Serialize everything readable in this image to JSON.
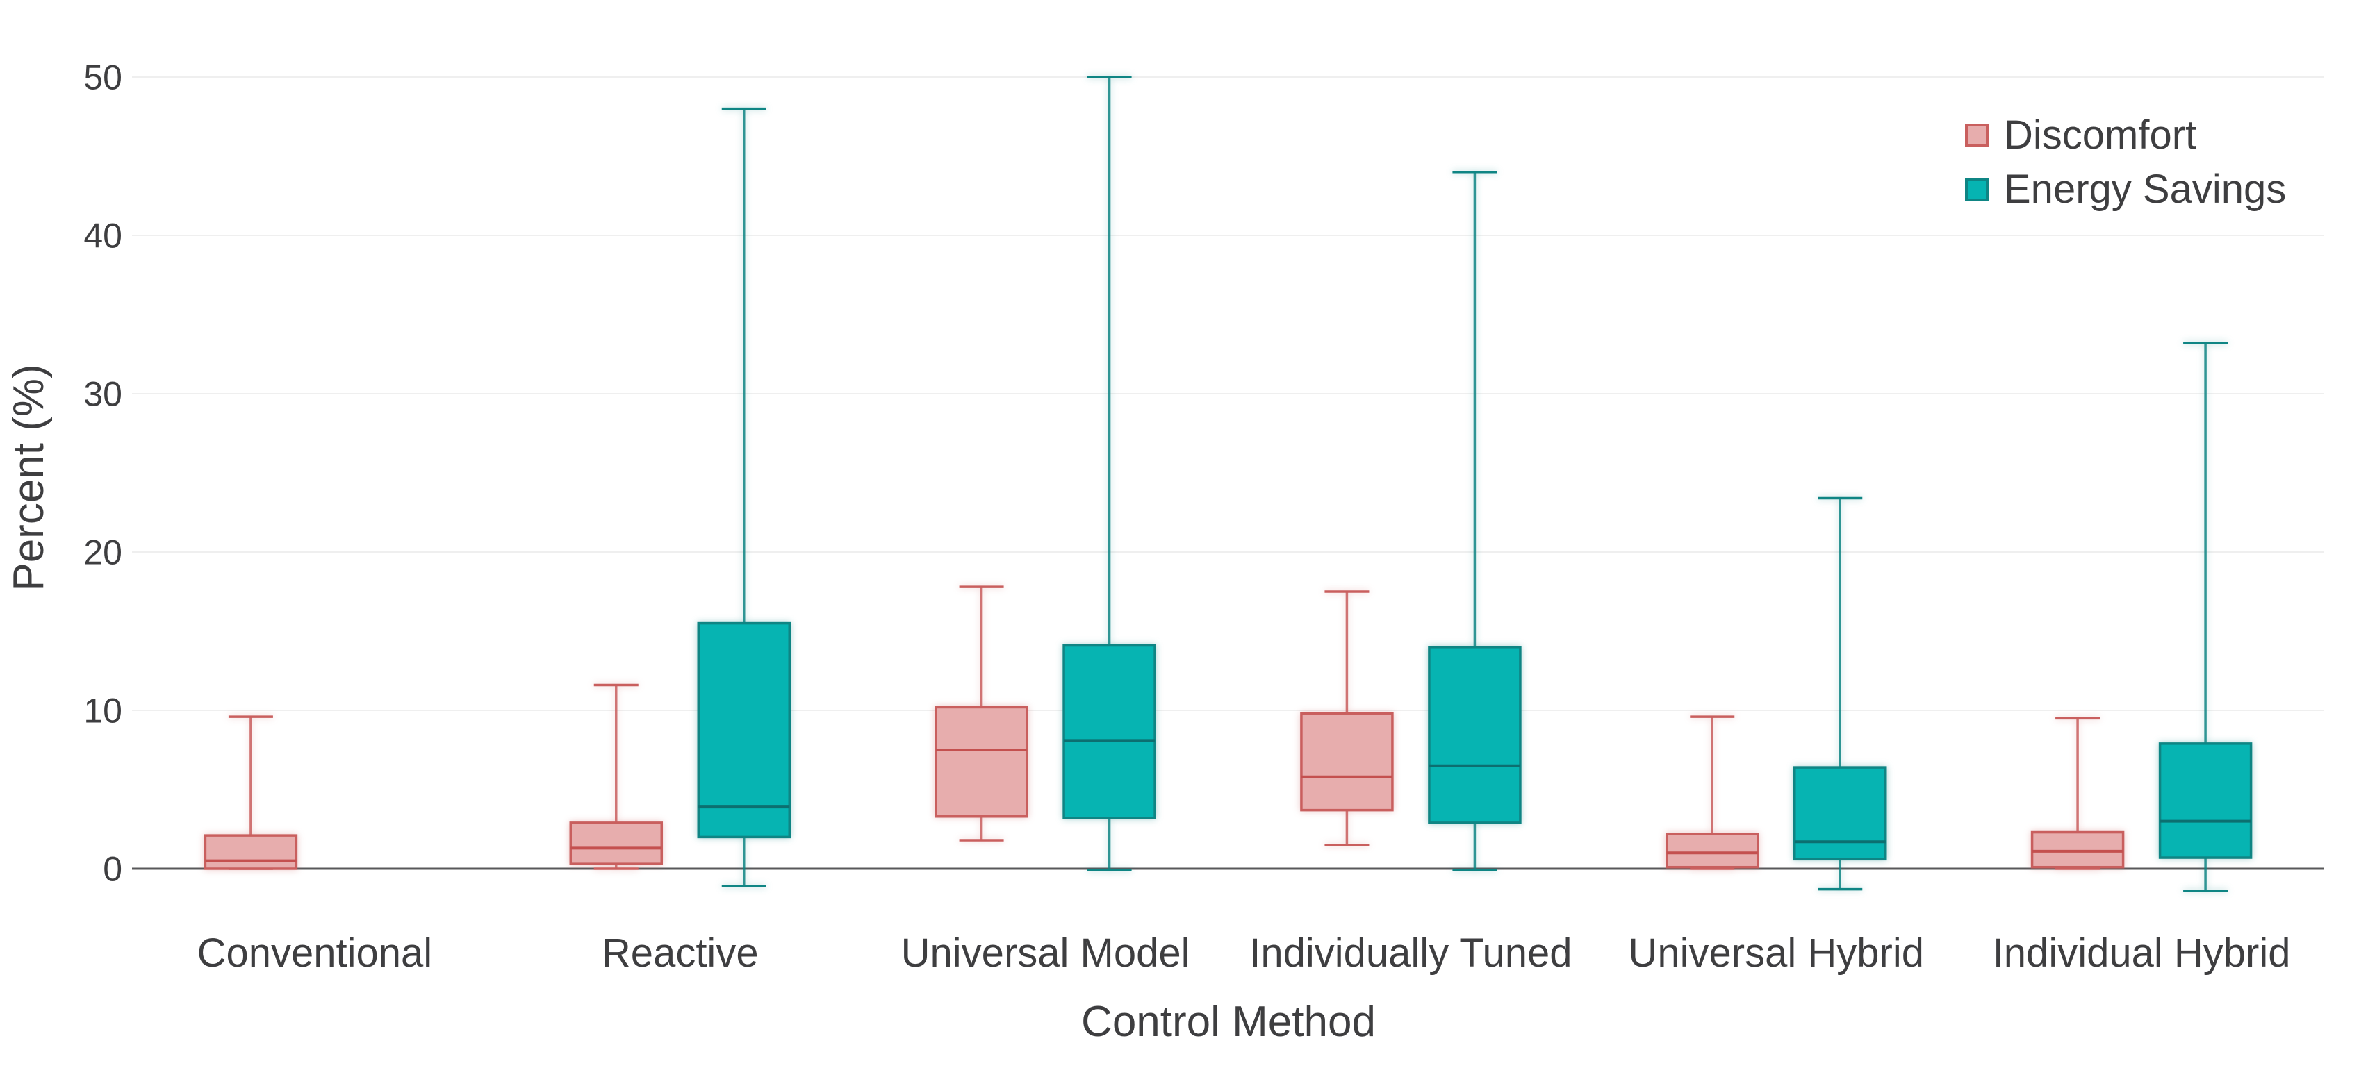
{
  "chart_data": {
    "type": "box",
    "title": "",
    "xlabel": "Control Method",
    "ylabel": "Percent (%)",
    "categories": [
      "Conventional",
      "Reactive",
      "Universal Model",
      "Individually Tuned",
      "Universal Hybrid",
      "Individual Hybrid"
    ],
    "yticks": [
      0,
      10,
      20,
      30,
      40,
      50
    ],
    "ylim": [
      -4,
      53
    ],
    "grid": true,
    "legend_position": "top-right",
    "series": [
      {
        "name": "Discomfort",
        "line_color": "#c95f5e",
        "fill_color": "#e7adad",
        "median_color": "#c4504f",
        "boxes": [
          {
            "min": 0,
            "q1": 0,
            "median": 0.5,
            "q3": 2.1,
            "max": 9.6
          },
          {
            "min": 0,
            "q1": 0.3,
            "median": 1.3,
            "q3": 2.9,
            "max": 11.6
          },
          {
            "min": 1.8,
            "q1": 3.3,
            "median": 7.5,
            "q3": 10.2,
            "max": 17.8
          },
          {
            "min": 1.5,
            "q1": 3.7,
            "median": 5.8,
            "q3": 9.8,
            "max": 17.5
          },
          {
            "min": 0,
            "q1": 0.1,
            "median": 1.0,
            "q3": 2.2,
            "max": 9.6
          },
          {
            "min": 0,
            "q1": 0.1,
            "median": 1.1,
            "q3": 2.3,
            "max": 9.5
          }
        ]
      },
      {
        "name": "Energy Savings",
        "line_color": "#0f8584",
        "fill_color": "#06b4b2",
        "median_color": "#0c6f70",
        "boxes": [
          null,
          {
            "min": -1.1,
            "q1": 2.0,
            "median": 3.9,
            "q3": 15.5,
            "max": 48.0
          },
          {
            "min": -0.1,
            "q1": 3.2,
            "median": 8.1,
            "q3": 14.1,
            "max": 50.0
          },
          {
            "min": -0.1,
            "q1": 2.9,
            "median": 6.5,
            "q3": 14.0,
            "max": 44.0
          },
          {
            "min": -1.3,
            "q1": 0.6,
            "median": 1.7,
            "q3": 6.4,
            "max": 23.4
          },
          {
            "min": -1.4,
            "q1": 0.7,
            "median": 3.0,
            "q3": 7.9,
            "max": 33.2
          }
        ]
      }
    ]
  },
  "style": {
    "background": "#ffffff",
    "grid_color": "#efefef",
    "zero_line_color": "#58585a",
    "text_color": "#3e3e40"
  }
}
